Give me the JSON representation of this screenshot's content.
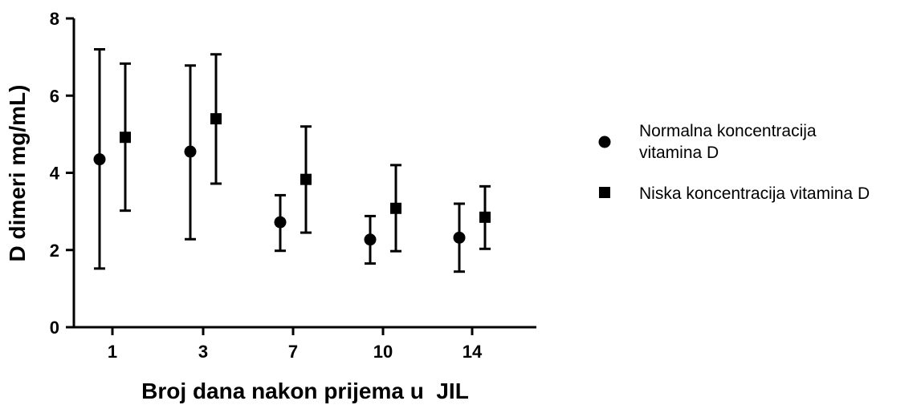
{
  "chart_data": {
    "type": "scatter",
    "title": "",
    "xlabel": "Broj dana nakon prijema u  JIL",
    "ylabel": "D dimeri mg/mL)",
    "categories": [
      "1",
      "3",
      "7",
      "10",
      "14"
    ],
    "ylim": [
      0,
      8
    ],
    "yticks": [
      "0",
      "2",
      "4",
      "6",
      "8"
    ],
    "grid": false,
    "legend_position": "right",
    "series": [
      {
        "name_lines": [
          "Normalna koncentracija",
          "vitamina D"
        ],
        "marker": "circle",
        "values": [
          4.35,
          4.55,
          2.72,
          2.27,
          2.32
        ],
        "error_low": [
          1.52,
          2.28,
          1.98,
          1.65,
          1.44
        ],
        "error_high": [
          7.2,
          6.78,
          3.42,
          2.88,
          3.2
        ]
      },
      {
        "name_lines": [
          "Niska koncentracija vitamina D"
        ],
        "marker": "square",
        "values": [
          4.92,
          5.4,
          3.83,
          3.08,
          2.85
        ],
        "error_low": [
          3.02,
          3.72,
          2.45,
          1.97,
          2.03
        ],
        "error_high": [
          6.83,
          7.07,
          5.2,
          4.2,
          3.65
        ]
      }
    ]
  }
}
